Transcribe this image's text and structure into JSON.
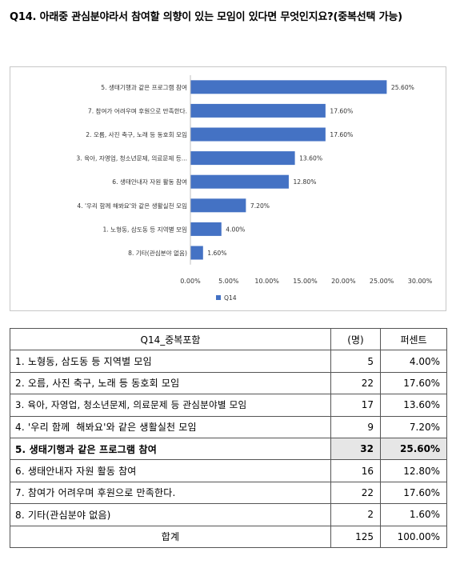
{
  "question": "Q14. 아래중 관심분야라서 참여할 의향이 있는 모임이 있다면 무엇인지요?(중복선택 가능)",
  "chart_data": {
    "type": "bar",
    "orientation": "horizontal",
    "categories": [
      "5. 생태기행과 같은 프로그램 참여",
      "7. 참여가 어려우며 후원으로 만족한다.",
      "2. 오름, 사진 축구, 노래 등 동호회 모임",
      "3. 육아, 자영업, 청소년문제, 의료문제 등...",
      "6. 생태안내자 자원 활동 참여",
      "4. '우리 함께 해봐요'와 같은 생활실천 모임",
      "1. 노형동, 삼도동 등 지역별 모임",
      "8. 기타(관심분야 없음)"
    ],
    "series": [
      {
        "name": "Q14",
        "values": [
          25.6,
          17.6,
          17.6,
          13.6,
          12.8,
          7.2,
          4.0,
          1.6
        ],
        "labels": [
          "25.60%",
          "17.60%",
          "17.60%",
          "13.60%",
          "12.80%",
          "7.20%",
          "4.00%",
          "1.60%"
        ]
      }
    ],
    "xlim": [
      0,
      30
    ],
    "x_ticks": [
      "0.00%",
      "5.00%",
      "10.00%",
      "15.00%",
      "20.00%",
      "25.00%",
      "30.00%"
    ],
    "bar_color": "#4472c4",
    "legend_position": "bottom",
    "grid": false
  },
  "table": {
    "headers": [
      "Q14_중복포함",
      "(명)",
      "퍼센트"
    ],
    "rows": [
      {
        "label": "1. 노형동, 삼도동 등 지역별 모임",
        "count": "5",
        "percent": "4.00%"
      },
      {
        "label": "2. 오름, 사진 축구, 노래 등 동호회 모임",
        "count": "22",
        "percent": "17.60%"
      },
      {
        "label": "3. 육아, 자영업, 청소년문제, 의료문제 등 관심분야별 모임",
        "count": "17",
        "percent": "13.60%"
      },
      {
        "label": "4. '우리 함께  해봐요'와 같은 생활실천 모임",
        "count": "9",
        "percent": "7.20%"
      },
      {
        "label": "5. 생태기행과 같은 프로그램 참여",
        "count": "32",
        "percent": "25.60%"
      },
      {
        "label": "6. 생태안내자 자원 활동 참여",
        "count": "16",
        "percent": "12.80%"
      },
      {
        "label": "7. 참여가 어려우며 후원으로 만족한다.",
        "count": "22",
        "percent": "17.60%"
      },
      {
        "label": "8. 기타(관심분야 없음)",
        "count": "2",
        "percent": "1.60%"
      }
    ],
    "highlight_row": 4,
    "total": {
      "label": "합계",
      "count": "125",
      "percent": "100.00%"
    }
  }
}
